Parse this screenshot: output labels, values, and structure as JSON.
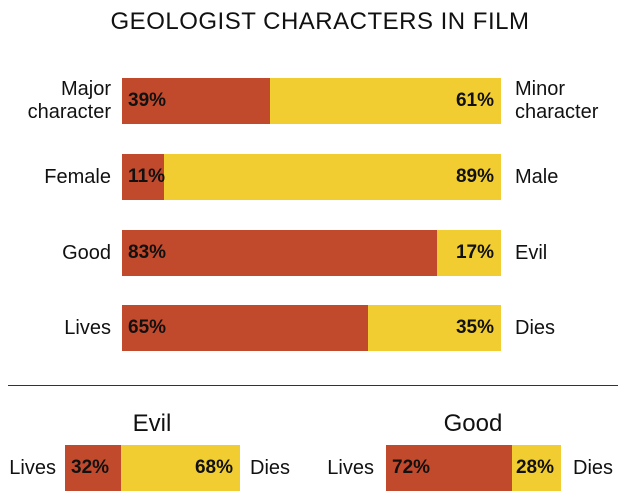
{
  "title": "GEOLOGIST CHARACTERS IN FILM",
  "colors": {
    "left": "#C1492C",
    "right": "#F2CD32"
  },
  "chart_data": [
    {
      "type": "bar",
      "orientation": "horizontal-stacked-100",
      "title": "GEOLOGIST CHARACTERS IN FILM",
      "categories": [
        "Major/Minor character",
        "Female/Male",
        "Good/Evil",
        "Lives/Dies"
      ],
      "rows": [
        {
          "left_label": "Major character",
          "left_value": 39,
          "left_text": "39%",
          "right_label": "Minor character",
          "right_value": 61,
          "right_text": "61%"
        },
        {
          "left_label": "Female",
          "left_value": 11,
          "left_text": "11%",
          "right_label": "Male",
          "right_value": 89,
          "right_text": "89%"
        },
        {
          "left_label": "Good",
          "left_value": 83,
          "left_text": "83%",
          "right_label": "Evil",
          "right_value": 17,
          "right_text": "17%"
        },
        {
          "left_label": "Lives",
          "left_value": 65,
          "left_text": "65%",
          "right_label": "Dies",
          "right_value": 35,
          "right_text": "35%"
        }
      ]
    },
    {
      "type": "bar",
      "orientation": "horizontal-stacked-100",
      "title": "Evil",
      "rows": [
        {
          "left_label": "Lives",
          "left_value": 32,
          "left_text": "32%",
          "right_label": "Dies",
          "right_value": 68,
          "right_text": "68%"
        }
      ]
    },
    {
      "type": "bar",
      "orientation": "horizontal-stacked-100",
      "title": "Good",
      "rows": [
        {
          "left_label": "Lives",
          "left_value": 72,
          "left_text": "72%",
          "right_label": "Dies",
          "right_value": 28,
          "right_text": "28%"
        }
      ]
    }
  ]
}
